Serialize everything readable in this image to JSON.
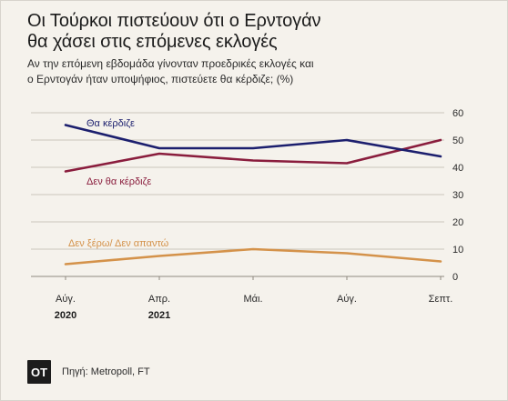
{
  "title_line1": "Οι Τούρκοι πιστεύουν ότι ο Ερντογάν",
  "title_line2": "θα χάσει στις επόμενες εκλογές",
  "subtitle_line1": "Αν την επόμενη εβδομάδα γίνονταν προεδρικές εκλογές και",
  "subtitle_line2": "ο Ερντογάν ήταν υποψήφιος, πιστεύετε θα κέρδιζε; (%)",
  "footer": {
    "logo_text": "ΟΤ",
    "source": "Πηγή: Metropoll, FT"
  },
  "colors": {
    "background": "#f5f2ec",
    "win": "#1c1f6e",
    "lose": "#8a1d3d",
    "dontknow": "#d4924a",
    "grid": "#bdb7ad",
    "text": "#2a2a2a"
  },
  "chart_data": {
    "type": "line",
    "x_labels": [
      "Αύγ.",
      "Απρ.",
      "Μάι.",
      "Αύγ.",
      "Σεπτ."
    ],
    "x_sublabels": [
      "2020",
      "2021",
      "",
      "",
      ""
    ],
    "y_ticks": [
      0,
      10,
      20,
      30,
      40,
      50,
      60
    ],
    "ylim": [
      0,
      60
    ],
    "y_axis_side": "right",
    "grid": true,
    "series": [
      {
        "name": "Θα κέρδιζε",
        "key": "win",
        "values": [
          55.5,
          47,
          47,
          50,
          44
        ]
      },
      {
        "name": "Δεν θα κέρδιζε",
        "key": "lose",
        "values": [
          38.5,
          45,
          42.5,
          41.5,
          50
        ]
      },
      {
        "name": "Δεν ξέρω/ Δεν απαντώ",
        "key": "dontknow",
        "values": [
          4.5,
          7.5,
          10,
          8.5,
          5.5
        ]
      }
    ]
  }
}
